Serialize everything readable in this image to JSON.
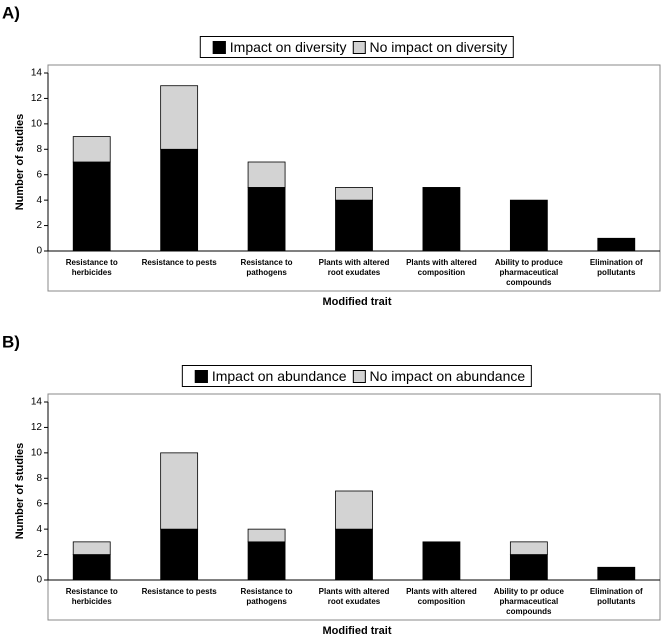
{
  "chart_data": [
    {
      "type": "bar",
      "stacked": true,
      "panel_label": "A)",
      "categories": [
        "Resistance to\nherbicides",
        "Resistance to pests",
        "Resistance to\npathogens",
        "Plants with altered\nroot exudates",
        "Plants with altered\ncomposition",
        "Ability to produce\npharmaceutical\ncompounds",
        "Elimination of\npollutants"
      ],
      "series": [
        {
          "name": "Impact on diversity",
          "color": "#000000",
          "values": [
            7,
            8,
            5,
            4,
            5,
            4,
            1
          ]
        },
        {
          "name": "No impact on diversity",
          "color": "#d3d3d3",
          "values": [
            2,
            5,
            2,
            1,
            0,
            0,
            0
          ]
        }
      ],
      "y_label": "Number of studies",
      "x_label": "Modified trait",
      "ylim": [
        0,
        14
      ],
      "yticks": [
        0,
        2,
        4,
        6,
        8,
        10,
        12,
        14
      ]
    },
    {
      "type": "bar",
      "stacked": true,
      "panel_label": "B)",
      "categories": [
        "Resistance to\nherbicides",
        "Resistance to pests",
        "Resistance to\npathogens",
        "Plants with altered\nroot exudates",
        "Plants with altered\ncomposition",
        "Ability to pr oduce\npharmaceutical\ncompounds",
        "Elimination of\npollutants"
      ],
      "series": [
        {
          "name": "Impact on abundance",
          "color": "#000000",
          "values": [
            2,
            4,
            3,
            4,
            3,
            2,
            1
          ]
        },
        {
          "name": "No impact on abundance",
          "color": "#d3d3d3",
          "values": [
            1,
            6,
            1,
            3,
            0,
            1,
            0
          ]
        }
      ],
      "y_label": "Number of studies",
      "x_label": "Modified trait",
      "ylim": [
        0,
        14
      ],
      "yticks": [
        0,
        2,
        4,
        6,
        8,
        10,
        12,
        14
      ]
    }
  ]
}
